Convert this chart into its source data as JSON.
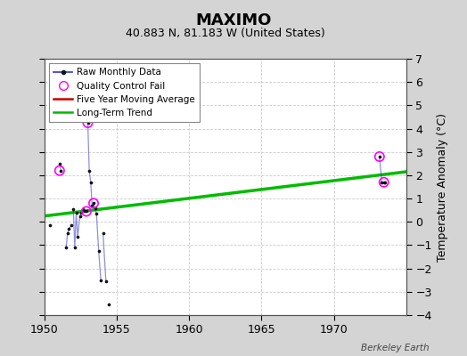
{
  "title": "MAXIMO",
  "subtitle": "40.883 N, 81.183 W (United States)",
  "ylabel": "Temperature Anomaly (°C)",
  "attribution": "Berkeley Earth",
  "xlim": [
    1950,
    1975
  ],
  "ylim": [
    -4,
    7
  ],
  "yticks": [
    -4,
    -3,
    -2,
    -1,
    0,
    1,
    2,
    3,
    4,
    5,
    6,
    7
  ],
  "xticks": [
    1950,
    1955,
    1960,
    1965,
    1970
  ],
  "background_color": "#d4d4d4",
  "plot_bg_color": "#ffffff",
  "raw_segments": [
    {
      "x": [
        1950.4
      ],
      "y": [
        -0.15
      ]
    },
    {
      "x": [
        1951.05,
        1951.15
      ],
      "y": [
        2.5,
        2.2
      ]
    },
    {
      "x": [
        1951.5,
        1951.6,
        1951.7,
        1951.85
      ],
      "y": [
        -1.1,
        -0.5,
        -0.3,
        -0.15
      ]
    },
    {
      "x": [
        1952.0,
        1952.1,
        1952.2,
        1952.3,
        1952.45,
        1952.55,
        1952.65,
        1952.8,
        1952.9
      ],
      "y": [
        0.55,
        -1.1,
        0.4,
        -0.65,
        0.25,
        0.4,
        0.55,
        0.45,
        0.45
      ]
    },
    {
      "x": [
        1953.0,
        1953.1,
        1953.2,
        1953.3,
        1953.4,
        1953.5,
        1953.6,
        1953.75,
        1953.9
      ],
      "y": [
        4.25,
        2.2,
        1.7,
        0.7,
        0.8,
        0.6,
        0.35,
        -1.25,
        -2.5
      ]
    },
    {
      "x": [
        1954.05,
        1954.25
      ],
      "y": [
        -0.5,
        -2.55
      ]
    },
    {
      "x": [
        1954.45
      ],
      "y": [
        -3.55
      ]
    },
    {
      "x": [
        1973.15,
        1973.3,
        1973.45,
        1973.55
      ],
      "y": [
        2.8,
        1.7,
        1.7,
        1.7
      ]
    }
  ],
  "qc_fail_x": [
    1953.0,
    1951.05,
    1952.9,
    1953.4,
    1973.15,
    1973.45
  ],
  "qc_fail_y": [
    4.25,
    2.2,
    0.45,
    0.8,
    2.8,
    1.7
  ],
  "trend_x": [
    1950,
    1975
  ],
  "trend_y": [
    0.25,
    2.15
  ],
  "line_color": "#3333cc",
  "line_alpha": 0.55,
  "dot_color": "#111111",
  "qc_color": "#ff00ff",
  "trend_color": "#00bb00",
  "moving_avg_color": "#cc0000",
  "title_fontsize": 13,
  "subtitle_fontsize": 9,
  "tick_fontsize": 9,
  "axis_label_fontsize": 9
}
